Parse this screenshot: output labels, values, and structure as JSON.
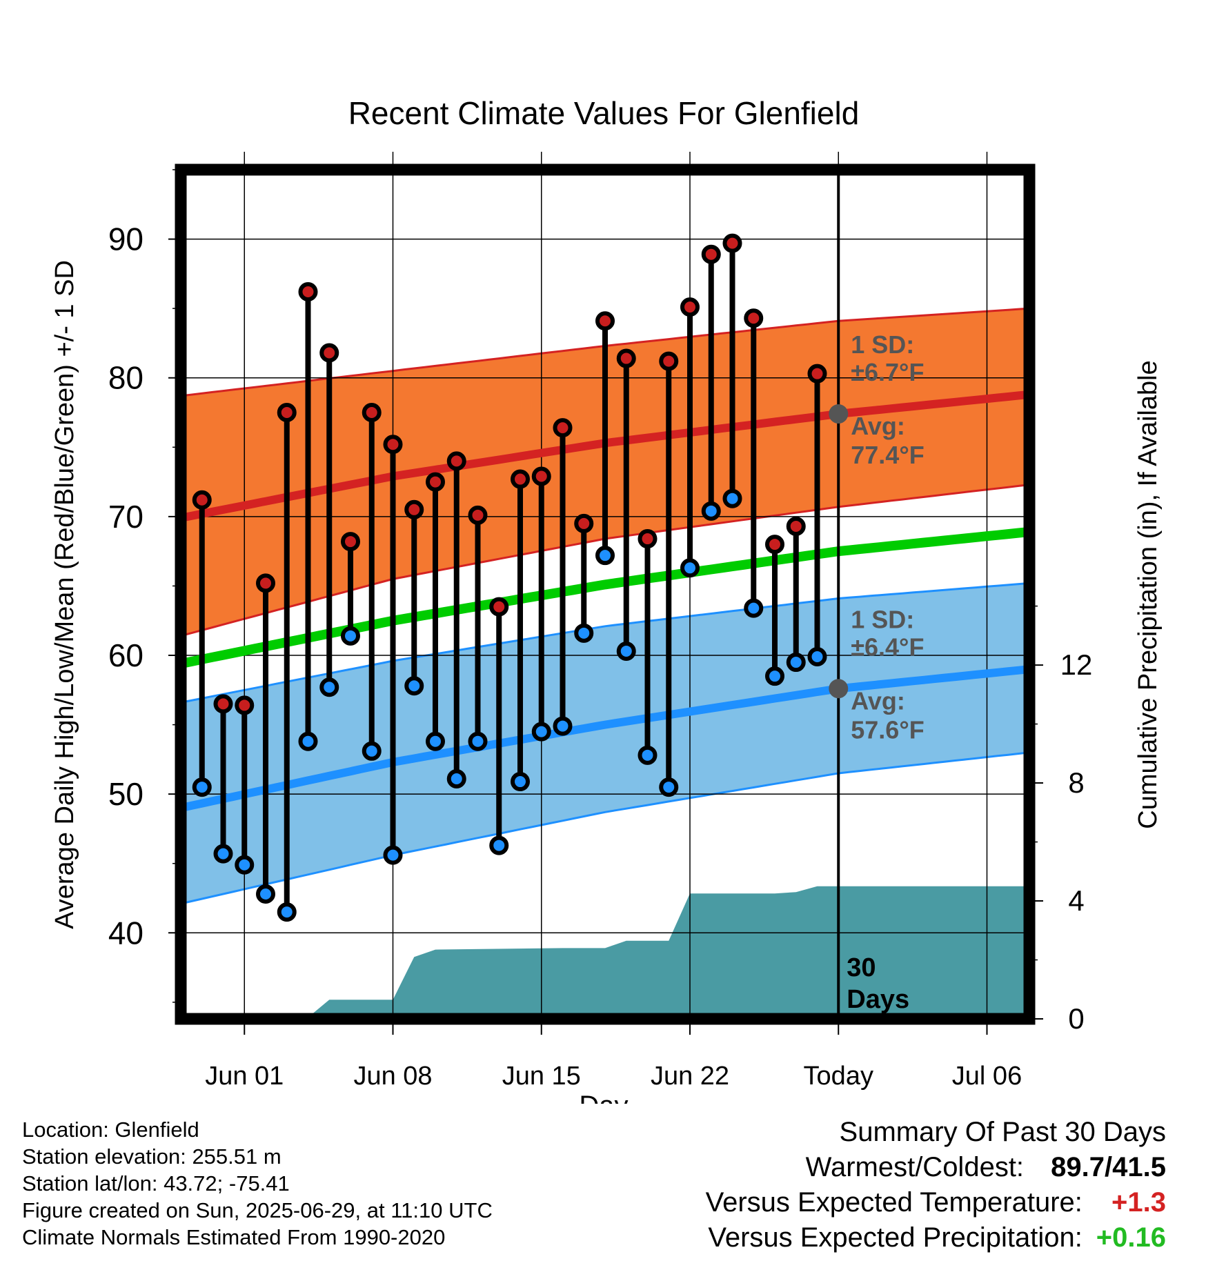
{
  "chart_data": {
    "type": "line",
    "title": "Recent Climate Values For Glenfield",
    "xlabel": "Day",
    "ylabel": "Average Daily High/Low/Mean (Red/Blue/Green) +/- 1 SD",
    "y2label": "Cumulative Precipitation (in), If Available",
    "x_tick_labels": [
      "Jun 01",
      "Jun 08",
      "Jun 15",
      "Jun 22",
      "Today",
      "Jul 06"
    ],
    "x_range": [
      "2025-05-29",
      "2025-07-08"
    ],
    "ylim": [
      33.8,
      95
    ],
    "y_ticks": [
      40,
      50,
      60,
      70,
      80,
      90
    ],
    "y2lim": [
      0,
      28.8
    ],
    "y2_ticks": [
      0,
      4,
      8,
      12
    ],
    "grid": true,
    "today": "2025-06-29",
    "today_label": "30 Days",
    "normal_high": {
      "dates": [
        "2025-05-29",
        "2025-06-08",
        "2025-06-18",
        "2025-06-29",
        "2025-07-08"
      ],
      "mean": [
        69.9,
        72.9,
        75.3,
        77.4,
        78.8
      ],
      "lower": [
        61.4,
        65.5,
        68.4,
        70.7,
        72.3
      ],
      "upper": [
        78.7,
        80.5,
        82.3,
        84.1,
        85.0
      ],
      "sd_label": "1 SD:",
      "sd_value": "±6.7°F",
      "avg_label": "Avg:",
      "avg_value": "77.4°F",
      "color": "#d42222",
      "band_color": "#f47830"
    },
    "normal_low": {
      "dates": [
        "2025-05-29",
        "2025-06-08",
        "2025-06-18",
        "2025-06-29",
        "2025-07-08"
      ],
      "mean": [
        49.0,
        52.3,
        55.0,
        57.6,
        59.0
      ],
      "lower": [
        42.1,
        45.6,
        48.7,
        51.5,
        53.0
      ],
      "upper": [
        56.6,
        59.6,
        62.1,
        64.1,
        65.2
      ],
      "sd_label": "1 SD:",
      "sd_value": "±6.4°F",
      "avg_label": "Avg:",
      "avg_value": "57.6°F",
      "color": "#1e90ff",
      "band_color": "#80c0e8"
    },
    "normal_mean": {
      "dates": [
        "2025-05-29",
        "2025-06-08",
        "2025-06-18",
        "2025-06-29",
        "2025-07-08"
      ],
      "values": [
        59.4,
        62.5,
        65.1,
        67.5,
        68.9
      ],
      "color": "#00cc00"
    },
    "daily": {
      "dates": [
        "2025-05-30",
        "2025-05-31",
        "2025-06-01",
        "2025-06-02",
        "2025-06-03",
        "2025-06-04",
        "2025-06-05",
        "2025-06-06",
        "2025-06-07",
        "2025-06-08",
        "2025-06-09",
        "2025-06-10",
        "2025-06-11",
        "2025-06-12",
        "2025-06-13",
        "2025-06-14",
        "2025-06-15",
        "2025-06-16",
        "2025-06-17",
        "2025-06-18",
        "2025-06-19",
        "2025-06-20",
        "2025-06-21",
        "2025-06-22",
        "2025-06-23",
        "2025-06-24",
        "2025-06-25",
        "2025-06-26",
        "2025-06-27",
        "2025-06-28"
      ],
      "highs": [
        71.2,
        56.5,
        56.4,
        65.2,
        77.5,
        86.2,
        81.8,
        68.2,
        77.5,
        75.2,
        70.5,
        72.5,
        74.0,
        70.1,
        63.5,
        72.7,
        72.9,
        76.4,
        69.5,
        84.1,
        81.4,
        68.4,
        81.2,
        85.1,
        88.9,
        89.7,
        84.3,
        68.0,
        69.3,
        80.3
      ],
      "lows": [
        50.5,
        45.7,
        44.9,
        42.8,
        41.5,
        53.8,
        57.7,
        61.4,
        53.1,
        45.6,
        57.8,
        53.8,
        51.1,
        53.8,
        46.3,
        50.9,
        54.5,
        54.9,
        61.6,
        67.2,
        60.3,
        52.8,
        50.5,
        66.3,
        70.4,
        71.3,
        63.4,
        58.5,
        59.5,
        59.9
      ],
      "high_color": "#c81e1e",
      "low_color": "#1e90ff"
    },
    "precip_cumulative": {
      "dates": [
        "2025-05-29",
        "2025-06-01",
        "2025-06-04",
        "2025-06-05",
        "2025-06-06",
        "2025-06-07",
        "2025-06-08",
        "2025-06-09",
        "2025-06-10",
        "2025-06-16",
        "2025-06-18",
        "2025-06-19",
        "2025-06-21",
        "2025-06-22",
        "2025-06-25",
        "2025-06-26",
        "2025-06-27",
        "2025-06-28",
        "2025-07-08"
      ],
      "values": [
        0.0,
        0.05,
        0.05,
        0.65,
        0.65,
        0.65,
        0.65,
        2.1,
        2.35,
        2.4,
        2.4,
        2.65,
        2.65,
        4.25,
        4.25,
        4.25,
        4.3,
        4.5,
        4.5
      ],
      "color": "#4a9ba3"
    }
  },
  "footer": {
    "location": "Location: Glenfield",
    "elevation": "Station elevation: 255.51 m",
    "latlon": "Station lat/lon: 43.72; -75.41",
    "created": "Figure created on Sun, 2025-06-29, at 11:10 UTC",
    "normals": "Climate Normals Estimated From 1990-2020"
  },
  "summary": {
    "title": "Summary Of Past 30 Days",
    "warm_cold_label": "Warmest/Coldest:",
    "warm_cold_value": "89.7/41.5",
    "temp_label": "Versus Expected Temperature:",
    "temp_value": "+1.3",
    "temp_color": "#d42222",
    "precip_label": "Versus Expected Precipitation:",
    "precip_value": "+0.16",
    "precip_color": "#22bb22"
  }
}
